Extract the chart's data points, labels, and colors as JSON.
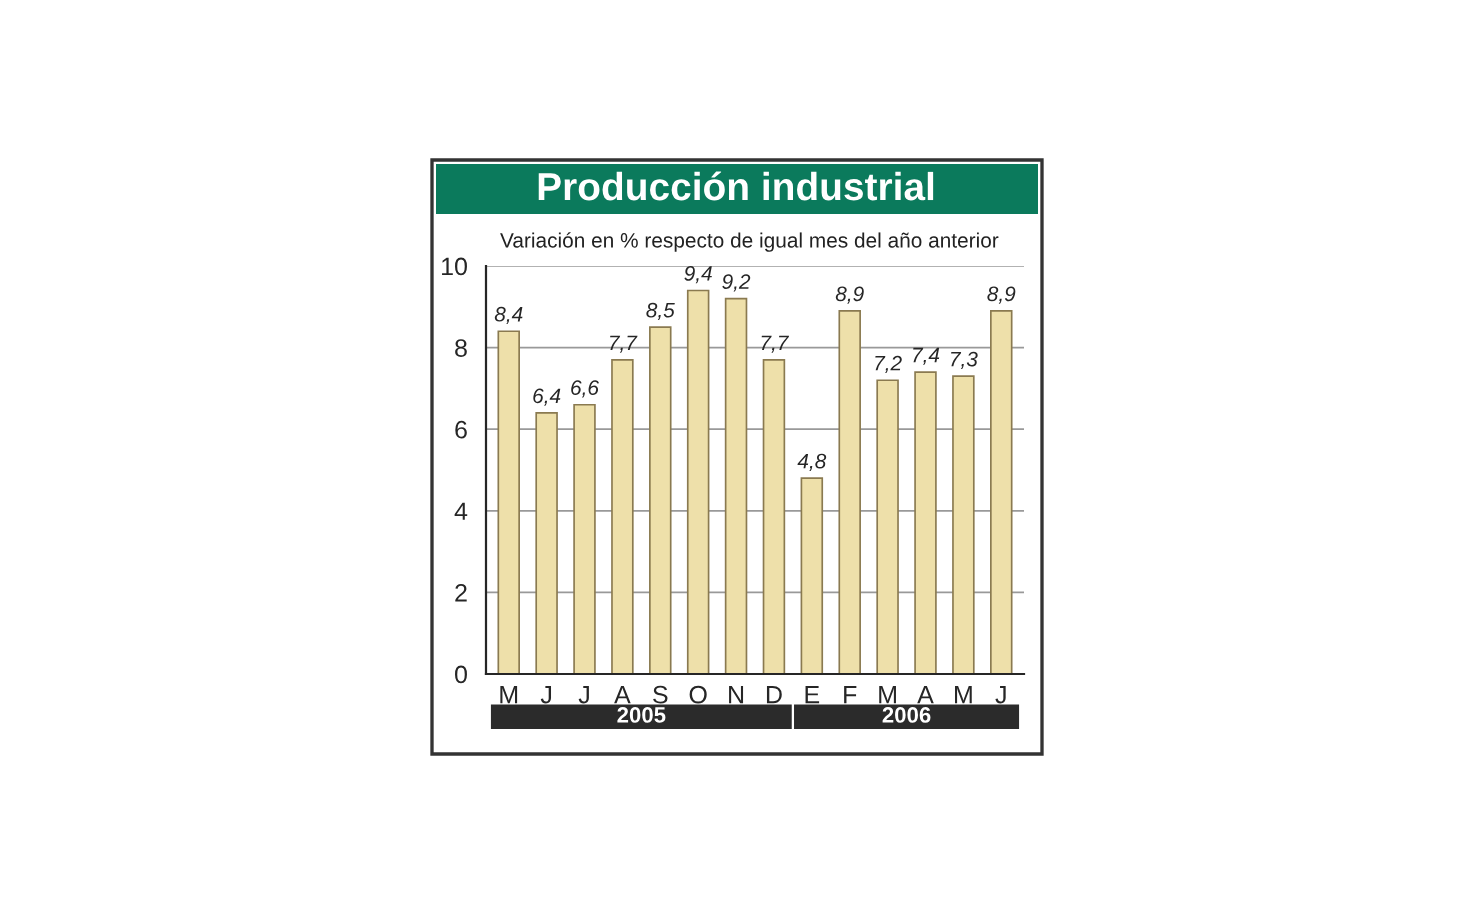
{
  "chart_data": {
    "type": "bar",
    "title": "Producción industrial",
    "subtitle": "Variación en % respecto de igual mes del año anterior",
    "categories": [
      "M",
      "J",
      "J",
      "A",
      "S",
      "O",
      "N",
      "D",
      "E",
      "F",
      "M",
      "A",
      "M",
      "J"
    ],
    "values": [
      8.4,
      6.4,
      6.6,
      7.7,
      8.5,
      9.4,
      9.2,
      7.7,
      4.8,
      8.9,
      7.2,
      7.4,
      7.3,
      8.9
    ],
    "value_labels": [
      "8,4",
      "6,4",
      "6,6",
      "7,7",
      "8,5",
      "9,4",
      "9,2",
      "7,7",
      "4,8",
      "8,9",
      "7,2",
      "7,4",
      "7,3",
      "8,9"
    ],
    "color": "#eee0aa",
    "ylim": [
      0,
      10
    ],
    "yticks": [
      0,
      2,
      4,
      6,
      8,
      10
    ],
    "grid": "y",
    "annotations": [
      "2005",
      "2006"
    ]
  }
}
